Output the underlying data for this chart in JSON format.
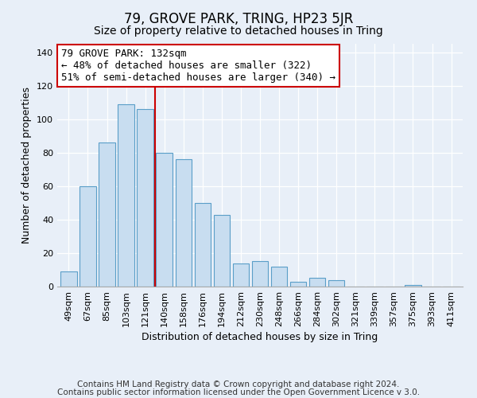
{
  "title": "79, GROVE PARK, TRING, HP23 5JR",
  "subtitle": "Size of property relative to detached houses in Tring",
  "xlabel": "Distribution of detached houses by size in Tring",
  "ylabel": "Number of detached properties",
  "bar_labels": [
    "49sqm",
    "67sqm",
    "85sqm",
    "103sqm",
    "121sqm",
    "140sqm",
    "158sqm",
    "176sqm",
    "194sqm",
    "212sqm",
    "230sqm",
    "248sqm",
    "266sqm",
    "284sqm",
    "302sqm",
    "321sqm",
    "339sqm",
    "357sqm",
    "375sqm",
    "393sqm",
    "411sqm"
  ],
  "bar_values": [
    9,
    60,
    86,
    109,
    106,
    80,
    76,
    50,
    43,
    14,
    15,
    12,
    3,
    5,
    4,
    0,
    0,
    0,
    1,
    0,
    0
  ],
  "bar_color": "#c8ddf0",
  "bar_edge_color": "#5a9ec8",
  "marker_line_color": "#cc0000",
  "annotation_line1": "79 GROVE PARK: 132sqm",
  "annotation_line2": "← 48% of detached houses are smaller (322)",
  "annotation_line3": "51% of semi-detached houses are larger (340) →",
  "annotation_box_color": "#ffffff",
  "annotation_box_edge": "#cc0000",
  "ylim": [
    0,
    145
  ],
  "footer_line1": "Contains HM Land Registry data © Crown copyright and database right 2024.",
  "footer_line2": "Contains public sector information licensed under the Open Government Licence v 3.0.",
  "background_color": "#e8eff8",
  "plot_bg_color": "#e8eff8",
  "title_fontsize": 12,
  "subtitle_fontsize": 10,
  "xlabel_fontsize": 9,
  "ylabel_fontsize": 9,
  "tick_fontsize": 8,
  "annotation_fontsize": 9,
  "footer_fontsize": 7.5
}
